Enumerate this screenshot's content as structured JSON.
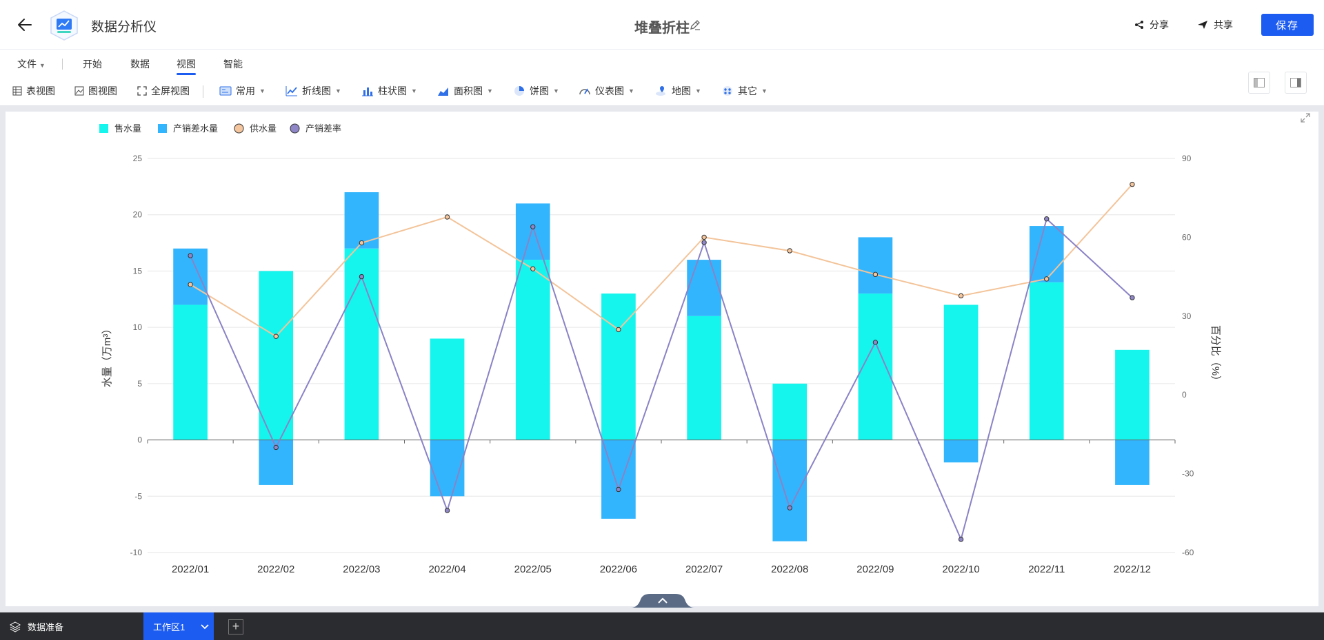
{
  "header": {
    "app_name": "数据分析仪",
    "doc_title": "堆叠折柱",
    "share_label": "分享",
    "collab_label": "共享",
    "save_label": "保存"
  },
  "menu": {
    "items": [
      "文件",
      "开始",
      "数据",
      "视图",
      "智能"
    ],
    "active": "视图"
  },
  "toolbar": {
    "table_view": "表视图",
    "chart_view": "图视图",
    "fullscreen_view": "全屏视图",
    "common": "常用",
    "line_chart": "折线图",
    "bar_chart": "柱状图",
    "area_chart": "面积图",
    "pie_chart": "饼图",
    "gauge_chart": "仪表图",
    "map_chart": "地图",
    "other": "其它"
  },
  "footer": {
    "data_prep": "数据准备",
    "workspace_tab": "工作区1",
    "add_label": "+"
  },
  "chart_data": {
    "type": "bar",
    "title": "",
    "categories": [
      "2022/01",
      "2022/02",
      "2022/03",
      "2022/04",
      "2022/05",
      "2022/06",
      "2022/07",
      "2022/08",
      "2022/09",
      "2022/10",
      "2022/11",
      "2022/12"
    ],
    "ylabel_left": "水量（万m³）",
    "ylabel_right": "百分比（%）",
    "ylim_left": [
      -10,
      25
    ],
    "yticks_left": [
      "-10",
      "-5",
      "0",
      "5",
      "10",
      "15",
      "20",
      "25"
    ],
    "ylim_right": [
      -60,
      90
    ],
    "yticks_right": [
      "-60",
      "-30",
      "0",
      "30",
      "60",
      "90"
    ],
    "legend_position": "top-left",
    "grid": true,
    "series": [
      {
        "name": "售水量",
        "kind": "bar",
        "stack": "water",
        "axis": "left",
        "color": "#15f5ee",
        "values": [
          12,
          15,
          17,
          9,
          16,
          13,
          11,
          5,
          13,
          12,
          14,
          8
        ]
      },
      {
        "name": "产销差水量",
        "kind": "bar",
        "stack": "water",
        "axis": "left",
        "color": "#33b5fd",
        "values": [
          5,
          -4,
          5,
          -5,
          5,
          -7,
          5,
          -9,
          5,
          -2,
          5,
          -4
        ]
      },
      {
        "name": "供水量",
        "kind": "line",
        "axis": "left",
        "color": "#f5c69e",
        "values": [
          13.8,
          9.2,
          17.5,
          19.8,
          15.2,
          9.8,
          18,
          16.8,
          14.7,
          12.8,
          14.3,
          22.7
        ]
      },
      {
        "name": "产销差率",
        "kind": "line",
        "axis": "right",
        "color": "#8f86c8",
        "values": [
          53,
          -20,
          45,
          -44,
          64,
          -36,
          58,
          -43,
          20,
          -55,
          67,
          37
        ]
      }
    ]
  }
}
